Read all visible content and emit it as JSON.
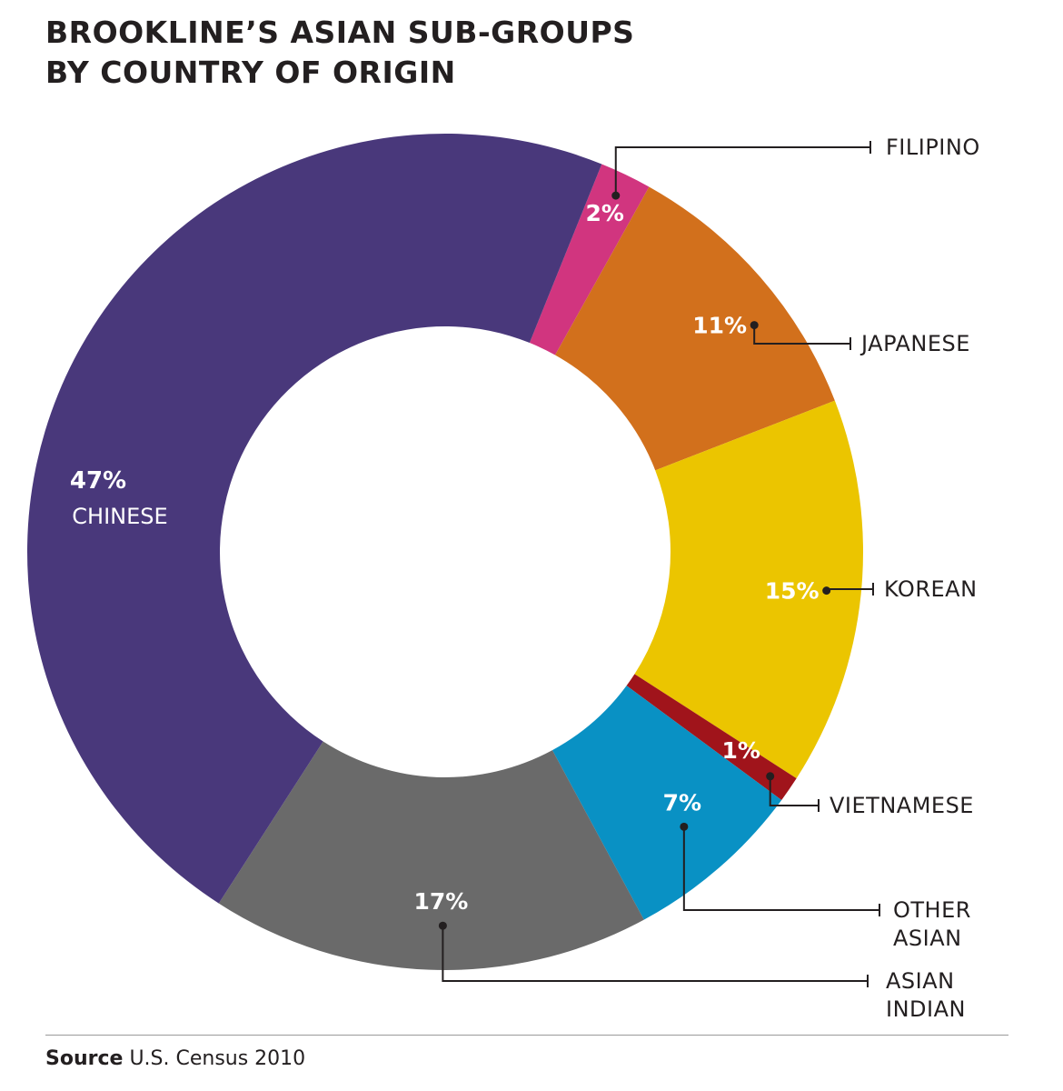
{
  "title": {
    "line1": "BROOKLINE’S ASIAN SUB-GROUPS",
    "line2": "BY COUNTRY OF ORIGIN"
  },
  "source": {
    "label": "Source",
    "text": "U.S. Census 2010"
  },
  "chart_data": {
    "type": "pie",
    "donut": true,
    "title": "BROOKLINE’S ASIAN SUB-GROUPS BY COUNTRY OF ORIGIN",
    "unit": "%",
    "slices": [
      {
        "label": "FILIPINO",
        "value": 2,
        "value_label": "2%",
        "color": "#d1357f"
      },
      {
        "label": "JAPANESE",
        "value": 11,
        "value_label": "11%",
        "color": "#d2701c"
      },
      {
        "label": "KOREAN",
        "value": 15,
        "value_label": "15%",
        "color": "#ebc500"
      },
      {
        "label": "VIETNAMESE",
        "value": 1,
        "value_label": "1%",
        "color": "#a0141b"
      },
      {
        "label": "OTHER ASIAN",
        "value": 7,
        "value_label": "7%",
        "color": "#0991c4"
      },
      {
        "label": "ASIAN INDIAN",
        "value": 17,
        "value_label": "17%",
        "color": "#6a6a6a"
      },
      {
        "label": "CHINESE",
        "value": 47,
        "value_label": "47%",
        "color": "#49387b"
      }
    ]
  }
}
